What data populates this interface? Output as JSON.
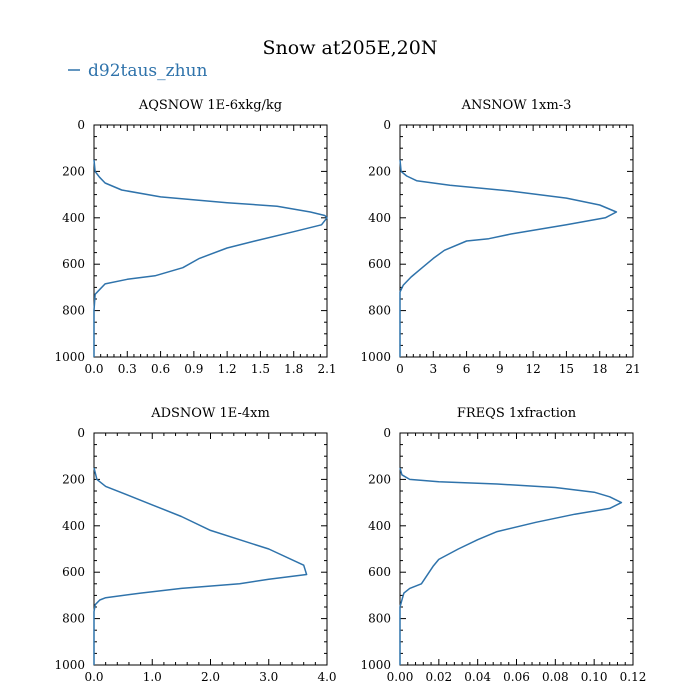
{
  "title": "Snow at205E,20N",
  "legend": {
    "label": "d92taus_zhun",
    "color": "#2f73ab"
  },
  "chart_data": [
    {
      "type": "line",
      "title": "AQSNOW  1E-6xkg/kg",
      "xlim": [
        0,
        2.1
      ],
      "xticks": [
        "0.0",
        "0.3",
        "0.6",
        "0.9",
        "1.2",
        "1.5",
        "1.8",
        "2.1"
      ],
      "ylim": [
        0,
        1000
      ],
      "yticks": [
        "0",
        "200",
        "400",
        "600",
        "800",
        "1000"
      ],
      "series": [
        {
          "name": "d92taus_zhun",
          "x": [
            0,
            0.01,
            0.05,
            0.1,
            0.25,
            0.6,
            1.2,
            1.65,
            1.95,
            2.08,
            2.1,
            2.05,
            1.8,
            1.45,
            1.2,
            0.95,
            0.8,
            0.55,
            0.3,
            0.1,
            0.05,
            0.01,
            0,
            0
          ],
          "y": [
            150,
            200,
            225,
            250,
            280,
            310,
            335,
            350,
            375,
            390,
            400,
            430,
            460,
            500,
            530,
            575,
            615,
            650,
            665,
            685,
            710,
            730,
            800,
            1000
          ]
        }
      ]
    },
    {
      "type": "line",
      "title": "ANSNOW  1xm-3",
      "xlim": [
        0,
        21
      ],
      "xticks": [
        "0",
        "3",
        "6",
        "9",
        "12",
        "15",
        "18",
        "21"
      ],
      "ylim": [
        0,
        1000
      ],
      "yticks": [
        "0",
        "200",
        "400",
        "600",
        "800",
        "1000"
      ],
      "series": [
        {
          "name": "d92taus_zhun",
          "x": [
            0,
            0.1,
            0.6,
            1.5,
            4.5,
            10,
            15,
            18,
            19.5,
            18.5,
            15,
            10,
            8,
            6,
            4,
            3,
            2,
            1,
            0.3,
            0,
            0
          ],
          "y": [
            150,
            200,
            220,
            240,
            260,
            285,
            315,
            345,
            375,
            400,
            430,
            470,
            490,
            500,
            540,
            575,
            615,
            655,
            690,
            720,
            1000
          ]
        }
      ]
    },
    {
      "type": "line",
      "title": "ADSNOW  1E-4xm",
      "xlim": [
        0,
        4
      ],
      "xticks": [
        "0.0",
        "1.0",
        "2.0",
        "3.0",
        "4.0"
      ],
      "ylim": [
        0,
        1000
      ],
      "yticks": [
        "0",
        "200",
        "400",
        "600",
        "800",
        "1000"
      ],
      "series": [
        {
          "name": "d92taus_zhun",
          "x": [
            0,
            0.05,
            0.2,
            0.6,
            1.0,
            1.5,
            2.0,
            2.5,
            3.0,
            3.6,
            3.65,
            3.0,
            2.5,
            1.5,
            0.8,
            0.2,
            0.1,
            0.02,
            0,
            0
          ],
          "y": [
            150,
            200,
            230,
            270,
            310,
            360,
            420,
            460,
            500,
            570,
            610,
            630,
            650,
            670,
            690,
            710,
            720,
            740,
            770,
            1000
          ]
        }
      ]
    },
    {
      "type": "line",
      "title": "FREQS  1xfraction",
      "xlim": [
        0,
        0.12
      ],
      "xticks": [
        "0.00",
        "0.02",
        "0.04",
        "0.06",
        "0.08",
        "0.10",
        "0.12"
      ],
      "ylim": [
        0,
        1000
      ],
      "yticks": [
        "0",
        "200",
        "400",
        "600",
        "800",
        "1000"
      ],
      "series": [
        {
          "name": "d92taus_zhun",
          "x": [
            0,
            0.001,
            0.005,
            0.02,
            0.05,
            0.08,
            0.1,
            0.108,
            0.114,
            0.108,
            0.09,
            0.07,
            0.05,
            0.04,
            0.03,
            0.02,
            0.017,
            0.011,
            0.005,
            0.002,
            0.001,
            0,
            0
          ],
          "y": [
            150,
            180,
            200,
            210,
            220,
            235,
            255,
            275,
            300,
            325,
            350,
            385,
            425,
            460,
            500,
            545,
            575,
            650,
            670,
            690,
            720,
            750,
            1000
          ]
        }
      ]
    }
  ]
}
